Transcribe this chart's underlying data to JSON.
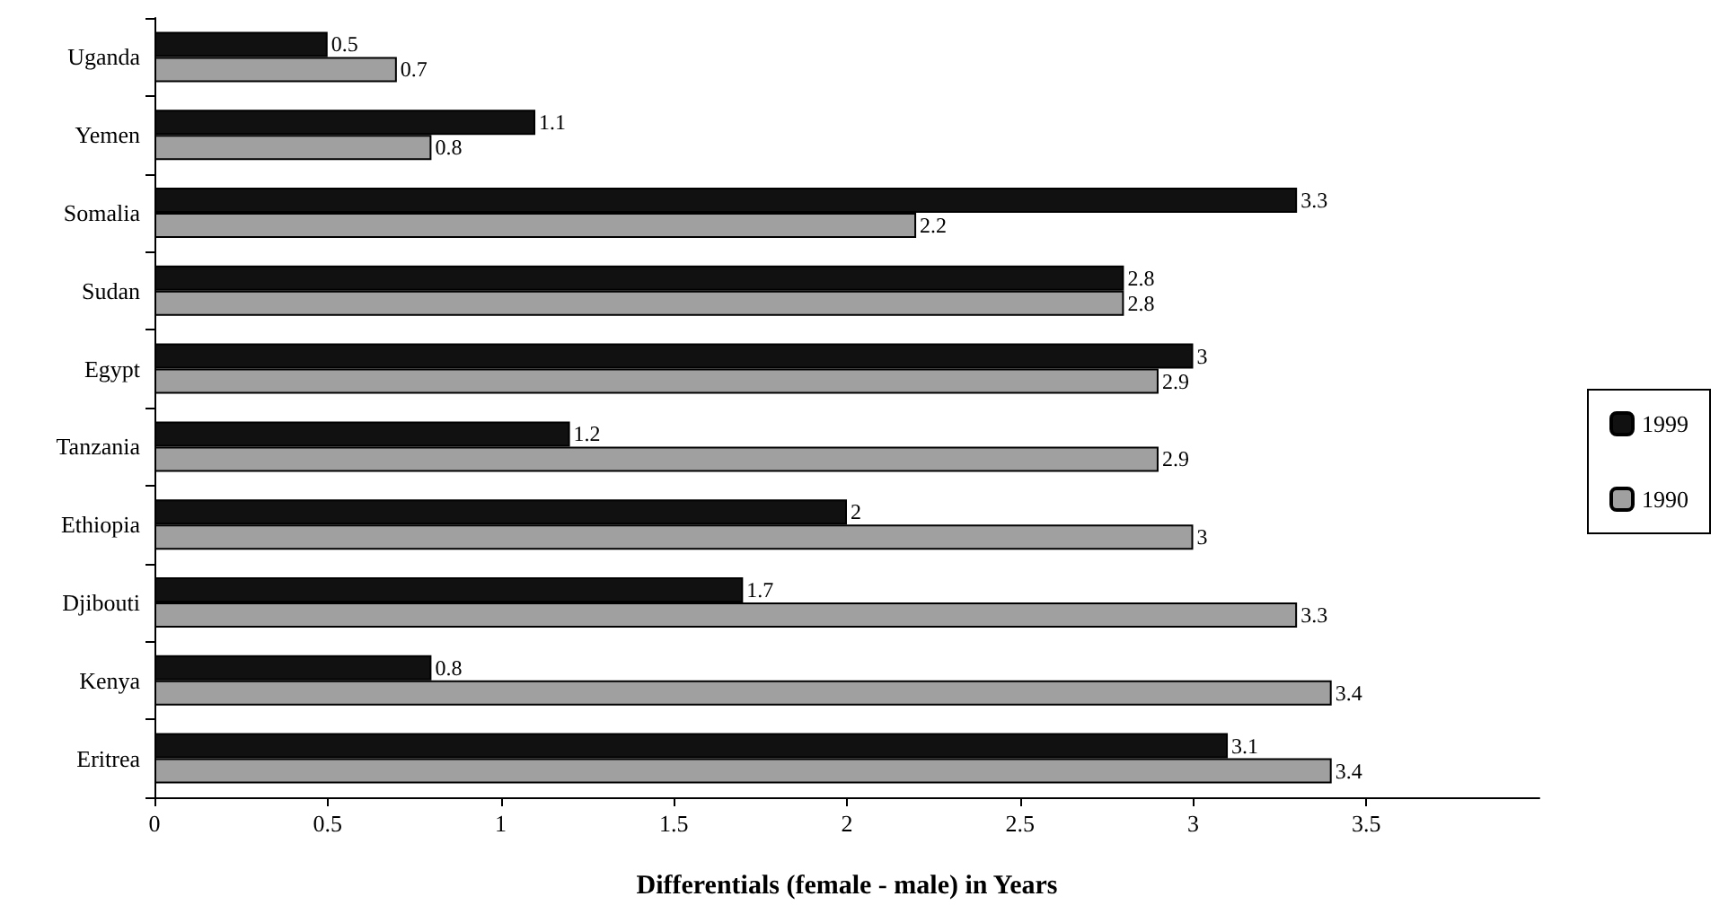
{
  "chart_data": {
    "type": "bar",
    "orientation": "horizontal",
    "xlabel": "Differentials (female - male) in Years",
    "categories": [
      "Uganda",
      "Yemen",
      "Somalia",
      "Sudan",
      "Egypt",
      "Tanzania",
      "Ethiopia",
      "Djibouti",
      "Kenya",
      "Eritrea"
    ],
    "series": [
      {
        "name": "1999",
        "color": "#111111",
        "values": [
          0.5,
          1.1,
          3.3,
          2.8,
          3,
          1.2,
          2,
          1.7,
          0.8,
          3.1
        ]
      },
      {
        "name": "1990",
        "color": "#a0a0a0",
        "values": [
          0.7,
          0.8,
          2.2,
          2.8,
          2.9,
          2.9,
          3,
          3.3,
          3.4,
          3.4
        ]
      }
    ],
    "xlim": [
      0,
      4
    ],
    "xticks": [
      0,
      0.5,
      1,
      1.5,
      2,
      2.5,
      3,
      3.5
    ],
    "grid": false,
    "legend": "right",
    "data_labels": true
  }
}
